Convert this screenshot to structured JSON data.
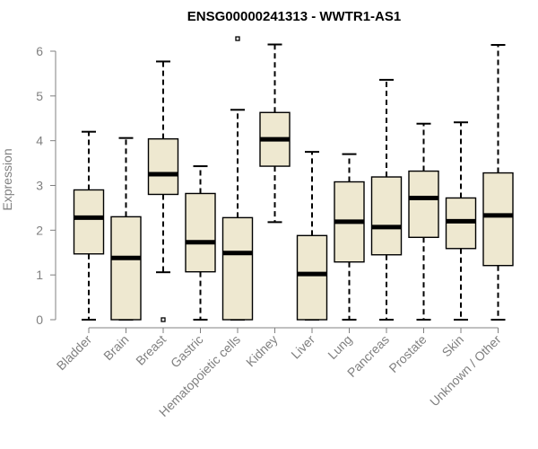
{
  "chart_data": {
    "type": "boxplot",
    "title": "ENSG00000241313 - WWTR1-AS1",
    "ylabel": "Expression",
    "xlabel": "",
    "ylim": [
      0,
      6.3
    ],
    "yticks": [
      0,
      1,
      2,
      3,
      4,
      5,
      6
    ],
    "box_color": "#EEE8D0",
    "axis_color": "#808080",
    "categories": [
      "Bladder",
      "Brain",
      "Breast",
      "Gastric",
      "Hematopoietic cells",
      "Kidney",
      "Liver",
      "Lung",
      "Pancreas",
      "Prostate",
      "Skin",
      "Unknown / Other"
    ],
    "boxes": [
      {
        "category": "Bladder",
        "min": 0,
        "q1": 1.47,
        "median": 2.28,
        "q3": 2.9,
        "max": 4.2,
        "outliers": []
      },
      {
        "category": "Brain",
        "min": 0,
        "q1": 0,
        "median": 1.38,
        "q3": 2.3,
        "max": 4.06,
        "outliers": []
      },
      {
        "category": "Breast",
        "min": 1.06,
        "q1": 2.8,
        "median": 3.25,
        "q3": 4.04,
        "max": 5.77,
        "outliers": [
          0.0
        ]
      },
      {
        "category": "Gastric",
        "min": 0,
        "q1": 1.07,
        "median": 1.73,
        "q3": 2.82,
        "max": 3.43,
        "outliers": []
      },
      {
        "category": "Hematopoietic cells",
        "min": 0,
        "q1": 0,
        "median": 1.49,
        "q3": 2.28,
        "max": 4.69,
        "outliers": [
          6.28
        ]
      },
      {
        "category": "Kidney",
        "min": 2.18,
        "q1": 3.43,
        "median": 4.03,
        "q3": 4.63,
        "max": 6.15,
        "outliers": []
      },
      {
        "category": "Liver",
        "min": 0,
        "q1": 0,
        "median": 1.02,
        "q3": 1.88,
        "max": 3.75,
        "outliers": []
      },
      {
        "category": "Lung",
        "min": 0,
        "q1": 1.29,
        "median": 2.19,
        "q3": 3.08,
        "max": 3.7,
        "outliers": []
      },
      {
        "category": "Pancreas",
        "min": 0,
        "q1": 1.45,
        "median": 2.07,
        "q3": 3.19,
        "max": 5.36,
        "outliers": []
      },
      {
        "category": "Prostate",
        "min": 0,
        "q1": 1.84,
        "median": 2.72,
        "q3": 3.32,
        "max": 4.38,
        "outliers": []
      },
      {
        "category": "Skin",
        "min": 0,
        "q1": 1.59,
        "median": 2.2,
        "q3": 2.72,
        "max": 4.41,
        "outliers": []
      },
      {
        "category": "Unknown / Other",
        "min": 0,
        "q1": 1.21,
        "median": 2.33,
        "q3": 3.28,
        "max": 6.14,
        "outliers": []
      }
    ]
  }
}
